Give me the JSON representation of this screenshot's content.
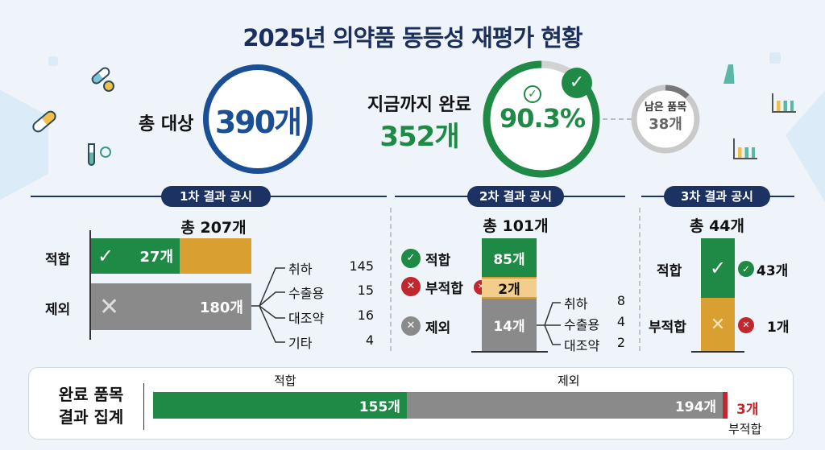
{
  "title": "2025년 의약품 동등성 재평가 현황",
  "summary": {
    "total_label": "총 대상",
    "total_value": "390개",
    "done_label": "지금까지 완료",
    "done_value": "352개",
    "done_percent": "90.3%",
    "done_fraction": 0.903,
    "remaining_label": "남은 품목",
    "remaining_value": "38개"
  },
  "round1": {
    "header": "1차 결과 공시",
    "total": "총 207개",
    "pass_label": "적합",
    "pass_value": "27개",
    "excluded_label": "제외",
    "excluded_value": "180개",
    "breakdown": [
      {
        "label": "취하",
        "value": "145"
      },
      {
        "label": "수출용",
        "value": "15"
      },
      {
        "label": "대조약",
        "value": "16"
      },
      {
        "label": "기타",
        "value": "4"
      }
    ]
  },
  "round2": {
    "header": "2차 결과 공시",
    "total": "총 101개",
    "pass_label": "적합",
    "pass_value": "85개",
    "fail_label": "부적합",
    "fail_value": "2개",
    "excluded_label": "제외",
    "excluded_value": "14개",
    "breakdown": [
      {
        "label": "취하",
        "value": "8"
      },
      {
        "label": "수출용",
        "value": "4"
      },
      {
        "label": "대조약",
        "value": "2"
      }
    ]
  },
  "round3": {
    "header": "3차 결과 공시",
    "total": "총 44개",
    "pass_label": "적합",
    "pass_value": "43개",
    "fail_label": "부적합",
    "fail_value": "1개"
  },
  "aggregate": {
    "title_line1": "완료 품목",
    "title_line2": "결과 집계",
    "pass_label": "적합",
    "pass_value": "155개",
    "excluded_label": "제외",
    "excluded_value": "194개",
    "fail_label": "부적합",
    "fail_value": "3개"
  },
  "colors": {
    "green": "#1f8a45",
    "gray": "#8a8a8a",
    "orange": "#d9a031",
    "red": "#c0282d",
    "navy": "#1b3263",
    "blue": "#1a4f96"
  },
  "chart_data": [
    {
      "type": "bar",
      "title": "1차 결과 공시",
      "categories": [
        "적합",
        "제외"
      ],
      "values": [
        27,
        180
      ],
      "total": 207,
      "breakdown": {
        "categories": [
          "취하",
          "수출용",
          "대조약",
          "기타"
        ],
        "values": [
          145,
          15,
          16,
          4
        ]
      }
    },
    {
      "type": "bar",
      "title": "2차 결과 공시",
      "stacked": true,
      "categories": [
        "적합",
        "부적합",
        "제외"
      ],
      "values": [
        85,
        2,
        14
      ],
      "total": 101,
      "breakdown": {
        "categories": [
          "취하",
          "수출용",
          "대조약"
        ],
        "values": [
          8,
          4,
          2
        ]
      }
    },
    {
      "type": "bar",
      "title": "3차 결과 공시",
      "stacked": true,
      "categories": [
        "적합",
        "부적합"
      ],
      "values": [
        43,
        1
      ],
      "total": 44
    },
    {
      "type": "bar",
      "title": "완료 품목 결과 집계",
      "stacked": true,
      "orientation": "horizontal",
      "categories": [
        "적합",
        "제외",
        "부적합"
      ],
      "values": [
        155,
        194,
        3
      ],
      "total": 352
    }
  ]
}
